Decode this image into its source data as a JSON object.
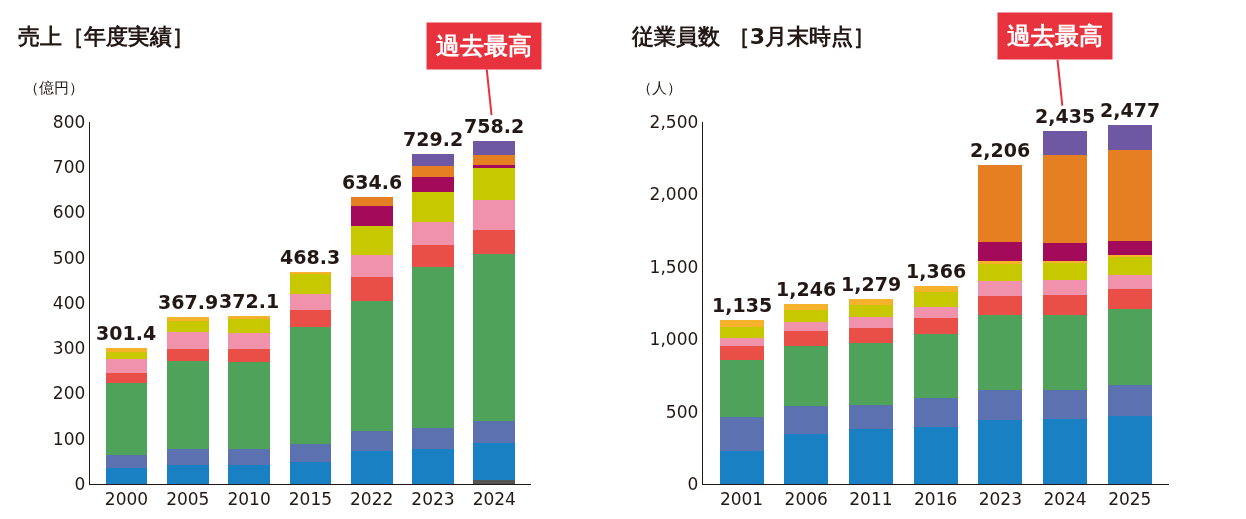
{
  "chart_data": [
    {
      "type": "bar",
      "stacked": true,
      "title": "売上［年度実績］",
      "ylabel": "（億円）",
      "categories": [
        "2000",
        "2005",
        "2010",
        "2015",
        "2022",
        "2023",
        "2024"
      ],
      "ylim": [
        0,
        800
      ],
      "yticks": [
        0,
        100,
        200,
        300,
        400,
        500,
        600,
        700,
        800
      ],
      "grid": false,
      "series": [
        {
          "color": "#555555",
          "values": [
            null,
            null,
            null,
            null,
            null,
            null,
            8
          ]
        },
        {
          "color": "#1a80c4",
          "values": [
            35,
            41,
            42,
            49,
            73,
            78,
            83
          ]
        },
        {
          "color": "#5c71b0",
          "values": [
            30,
            37,
            36,
            39,
            45,
            45,
            49
          ]
        },
        {
          "color": "#4fa25a",
          "values": [
            158,
            193,
            191,
            260,
            287,
            357,
            369
          ]
        },
        {
          "color": "#e94f47",
          "values": [
            22,
            27,
            29,
            37,
            52,
            49,
            52
          ]
        },
        {
          "color": "#f092ab",
          "values": [
            31,
            37,
            36,
            35,
            48,
            50,
            67
          ]
        },
        {
          "color": "#c8c800",
          "values": [
            16,
            26,
            31,
            43,
            66,
            66,
            72
          ]
        },
        {
          "color": "#f5b22a",
          "values": [
            9,
            7,
            7,
            5,
            null,
            null,
            null
          ]
        },
        {
          "color": "#a30b5a",
          "values": [
            null,
            null,
            null,
            null,
            44,
            34,
            4
          ]
        },
        {
          "color": "#e67e22",
          "values": [
            null,
            null,
            null,
            null,
            20,
            24,
            24
          ]
        },
        {
          "color": "#6e58a4",
          "values": [
            null,
            null,
            null,
            null,
            null,
            26,
            30
          ]
        }
      ],
      "totals": [
        "301.4",
        "367.9",
        "372.1",
        "468.3",
        "634.6",
        "729.2",
        "758.2"
      ],
      "annotations": [
        {
          "text": "過去最高",
          "x": "2024",
          "y": 758.2
        }
      ]
    },
    {
      "type": "bar",
      "stacked": true,
      "title": "従業員数 ［3月末時点］",
      "ylabel": "（人）",
      "categories": [
        "2001",
        "2006",
        "2011",
        "2016",
        "2023",
        "2024",
        "2025"
      ],
      "ylim": [
        0,
        2500
      ],
      "yticks": [
        0,
        500,
        {
          "value": 1000,
          "label": "1,000"
        },
        {
          "value": 1500,
          "label": "1,500"
        },
        {
          "value": 2000,
          "label": "2,000"
        },
        {
          "value": 2500,
          "label": "2,500"
        }
      ],
      "grid": false,
      "series": [
        {
          "color": "#1a80c4",
          "values": [
            231,
            348,
            383,
            397,
            444,
            448,
            473
          ]
        },
        {
          "color": "#5c71b0",
          "values": [
            231,
            188,
            162,
            195,
            202,
            198,
            211
          ]
        },
        {
          "color": "#4fa25a",
          "values": [
            397,
            417,
            426,
            446,
            522,
            520,
            525
          ]
        },
        {
          "color": "#e94f47",
          "values": [
            96,
            101,
            105,
            110,
            130,
            141,
            136
          ]
        },
        {
          "color": "#f092ab",
          "values": [
            56,
            63,
            74,
            76,
            106,
            103,
            96
          ]
        },
        {
          "color": "#c8c800",
          "values": [
            70,
            83,
            85,
            101,
            121,
            115,
            131
          ]
        },
        {
          "color": "#f5b22a",
          "values": [
            54,
            46,
            44,
            41,
            13,
            18,
            11
          ]
        },
        {
          "color": "#a30b5a",
          "values": [
            null,
            null,
            null,
            null,
            132,
            123,
            94
          ]
        },
        {
          "color": "#e67e22",
          "values": [
            null,
            null,
            null,
            null,
            536,
            605,
            628
          ]
        },
        {
          "color": "#6e58a4",
          "values": [
            null,
            null,
            null,
            null,
            null,
            164,
            172
          ]
        }
      ],
      "totals": [
        "1,135",
        "1,246",
        "1,279",
        "1,366",
        "2,206",
        "2,435",
        "2,477"
      ],
      "annotations": [
        {
          "text": "過去最高",
          "x": "2024",
          "y": 2435
        }
      ]
    }
  ]
}
